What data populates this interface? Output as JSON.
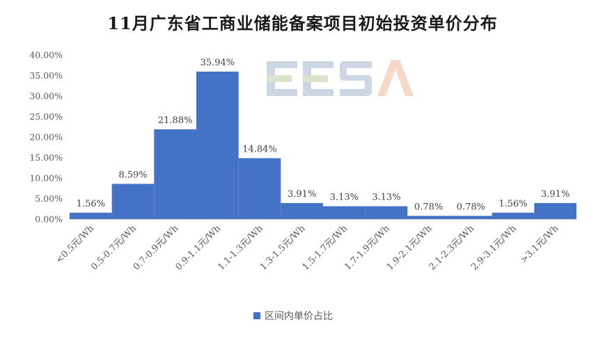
{
  "title": "11月广东省工商业储能备案项目初始投资单价分布",
  "watermark_text": "EESA",
  "chart_data": {
    "type": "bar",
    "categories": [
      "<0.5元/Wh",
      "0.5-0.7元/Wh",
      "0.7-0.9元/Wh",
      "0.9-1.1元/Wh",
      "1.1-1.3元/Wh",
      "1.3-1.5元/Wh",
      "1.5-1.7元/Wh",
      "1.7-1.9元/Wh",
      "1.9-2.1元/Wh",
      "2.1-2.3元/Wh",
      "2.9-3.1元/Wh",
      ">3.1元/Wh"
    ],
    "series": [
      {
        "name": "区间内单价占比",
        "values": [
          1.56,
          8.59,
          21.88,
          35.94,
          14.84,
          3.91,
          3.13,
          3.13,
          0.78,
          0.78,
          1.56,
          3.91
        ],
        "labels": [
          "1.56%",
          "8.59%",
          "21.88%",
          "35.94%",
          "14.84%",
          "3.91%",
          "3.13%",
          "3.13%",
          "0.78%",
          "0.78%",
          "1.56%",
          "3.91%"
        ],
        "color": "#4472C4"
      }
    ],
    "yticks": [
      "0.00%",
      "5.00%",
      "10.00%",
      "15.00%",
      "20.00%",
      "25.00%",
      "30.00%",
      "35.00%",
      "40.00%"
    ],
    "ylim": [
      0,
      40
    ],
    "xlabel": "",
    "ylabel": "",
    "grid": false,
    "legend_position": "bottom"
  }
}
